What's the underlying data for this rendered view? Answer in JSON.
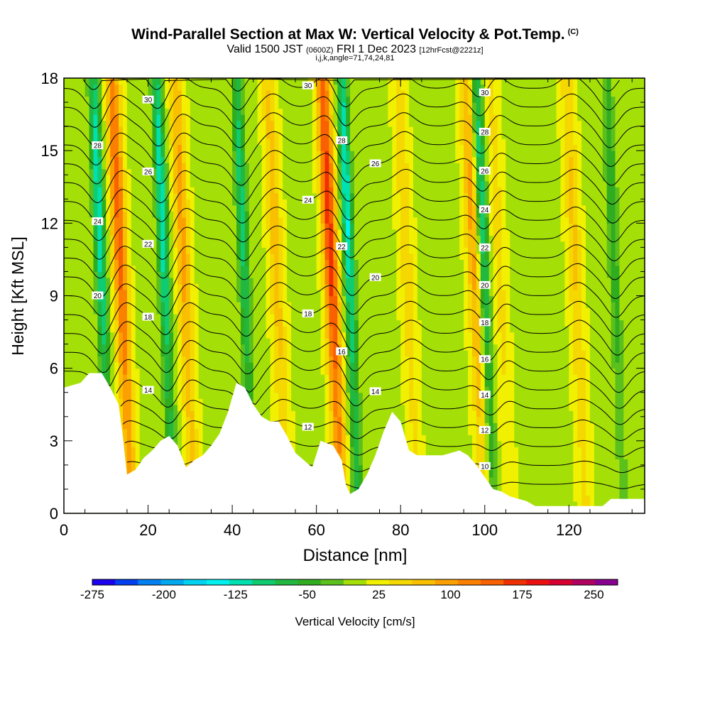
{
  "title": {
    "main": "Wind-Parallel Section at Max W: Vertical Velocity & Pot.Temp.",
    "copyright": "(C)",
    "valid_prefix": "Valid 1500 JST",
    "valid_utc": "(0600Z)",
    "valid_date": "FRI 1 Dec 2023",
    "forecast": "[12hrFcst@2221z]",
    "params": "i,j,k,angle=71,74,24,81"
  },
  "chart_data": {
    "type": "heatmap",
    "xlabel": "Distance [nm]",
    "ylabel": "Height [Kft MSL]",
    "xlim": [
      0,
      138
    ],
    "ylim": [
      0,
      18
    ],
    "x_ticks": [
      0,
      20,
      40,
      60,
      80,
      100,
      120
    ],
    "y_ticks": [
      0,
      3,
      6,
      9,
      12,
      15,
      18
    ],
    "colorbar": {
      "label": "Vertical Velocity [cm/s]",
      "tick_labels": [
        "-275",
        "-200",
        "-125",
        "-50",
        "25",
        "100",
        "175",
        "250"
      ],
      "tick_values": [
        -275,
        -200,
        -125,
        -50,
        25,
        100,
        175,
        250
      ],
      "bins": [
        -275,
        275
      ],
      "bin_width": 25,
      "colors": [
        "#1c00f0",
        "#0040f0",
        "#0080f0",
        "#00a8f0",
        "#00d2f0",
        "#00f0f0",
        "#00e0b0",
        "#10cc70",
        "#20b840",
        "#30ac20",
        "#5cc01c",
        "#a4e008",
        "#f0f000",
        "#f4d800",
        "#f8c000",
        "#fca000",
        "#fc8000",
        "#f86000",
        "#f03000",
        "#ec1010",
        "#d80030",
        "#b00060",
        "#880090"
      ]
    },
    "vertical_velocity": {
      "units": "cm/s",
      "background": 20,
      "updrafts": [
        {
          "x": 16,
          "w_max": 160
        },
        {
          "x": 31,
          "w_max": 110
        },
        {
          "x": 53,
          "w_max": 90
        },
        {
          "x": 66,
          "w_max": 190
        },
        {
          "x": 84,
          "w_max": 70
        },
        {
          "x": 100,
          "w_max": 110
        },
        {
          "x": 106,
          "w_max": 60
        },
        {
          "x": 124,
          "w_max": 80
        }
      ],
      "downdrafts": [
        {
          "x": 11,
          "w_min": -120
        },
        {
          "x": 26,
          "w_min": -120
        },
        {
          "x": 45,
          "w_min": -90
        },
        {
          "x": 70,
          "w_min": -130
        },
        {
          "x": 102,
          "w_min": -100
        },
        {
          "x": 133,
          "w_min": -50
        }
      ]
    },
    "potential_temperature": {
      "units": "deg C",
      "contour_interval": 1,
      "labeled_values": [
        10,
        12,
        14,
        16,
        18,
        20,
        22,
        24,
        26,
        28,
        30
      ]
    },
    "terrain_height_kft": [
      [
        0,
        5.2
      ],
      [
        4,
        5.4
      ],
      [
        6,
        5.8
      ],
      [
        9,
        5.8
      ],
      [
        11,
        5.2
      ],
      [
        13,
        4.5
      ],
      [
        14,
        3.2
      ],
      [
        15,
        1.6
      ],
      [
        17,
        1.8
      ],
      [
        19,
        2.3
      ],
      [
        21,
        2.6
      ],
      [
        23,
        3.0
      ],
      [
        25,
        3.2
      ],
      [
        27,
        2.8
      ],
      [
        29,
        1.9
      ],
      [
        31,
        2.2
      ],
      [
        33,
        2.4
      ],
      [
        35,
        2.8
      ],
      [
        37,
        3.3
      ],
      [
        39,
        4.2
      ],
      [
        41,
        5.4
      ],
      [
        43,
        5.2
      ],
      [
        45,
        4.5
      ],
      [
        47,
        4.0
      ],
      [
        49,
        3.8
      ],
      [
        51,
        3.8
      ],
      [
        53,
        3.2
      ],
      [
        55,
        2.5
      ],
      [
        57,
        2.2
      ],
      [
        59,
        1.9
      ],
      [
        61,
        3.0
      ],
      [
        64,
        2.8
      ],
      [
        66,
        2.2
      ],
      [
        67,
        1.2
      ],
      [
        68,
        0.8
      ],
      [
        70,
        1.0
      ],
      [
        72,
        1.6
      ],
      [
        74,
        2.4
      ],
      [
        76,
        3.4
      ],
      [
        78,
        4.2
      ],
      [
        80,
        3.8
      ],
      [
        82,
        2.6
      ],
      [
        84,
        2.4
      ],
      [
        86,
        2.4
      ],
      [
        90,
        2.4
      ],
      [
        94,
        2.6
      ],
      [
        96,
        2.4
      ],
      [
        98,
        2.0
      ],
      [
        100,
        1.5
      ],
      [
        102,
        1.0
      ],
      [
        104,
        0.9
      ],
      [
        106,
        0.7
      ],
      [
        108,
        0.6
      ],
      [
        110,
        0.5
      ],
      [
        112,
        0.3
      ],
      [
        118,
        0.3
      ],
      [
        128,
        0.3
      ],
      [
        130,
        0.6
      ],
      [
        135,
        0.6
      ],
      [
        138,
        0.6
      ]
    ]
  }
}
